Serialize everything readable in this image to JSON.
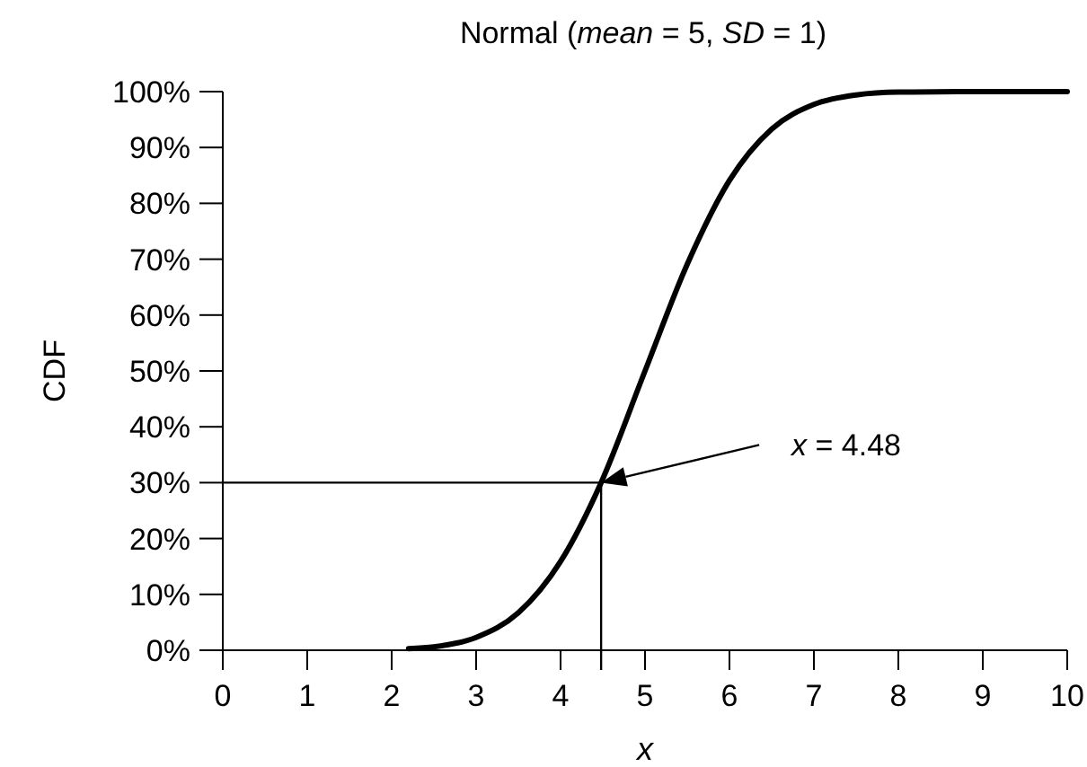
{
  "chart_data": {
    "type": "line",
    "title": "Normal (mean = 5, SD = 1)",
    "xlabel": "x",
    "ylabel": "CDF",
    "x": [
      2.2,
      2.5,
      3,
      3.5,
      4,
      4.48,
      5,
      5.5,
      6,
      6.5,
      7,
      7.5,
      8,
      9,
      10
    ],
    "series": [
      {
        "color": "#000000",
        "values": [
          0.3,
          0.6,
          2.3,
          6.7,
          15.9,
          30,
          50,
          69.1,
          84.1,
          93.3,
          97.7,
          99.4,
          99.9,
          100,
          100
        ]
      }
    ],
    "xlim": [
      0,
      10
    ],
    "xticks": [
      0,
      1,
      2,
      3,
      4,
      5,
      6,
      7,
      8,
      9,
      10
    ],
    "ylim": [
      0,
      100
    ],
    "yticks": [
      {
        "value": 0,
        "label": "0%"
      },
      {
        "value": 10,
        "label": "10%"
      },
      {
        "value": 20,
        "label": "20%"
      },
      {
        "value": 30,
        "label": "30%"
      },
      {
        "value": 40,
        "label": "40%"
      },
      {
        "value": 50,
        "label": "50%"
      },
      {
        "value": 60,
        "label": "60%"
      },
      {
        "value": 70,
        "label": "70%"
      },
      {
        "value": 80,
        "label": "80%"
      },
      {
        "value": 90,
        "label": "90%"
      },
      {
        "value": 100,
        "label": "100%"
      }
    ],
    "ref_lines": [
      {
        "axis": "y",
        "value": 30
      },
      {
        "axis": "x",
        "value": 4.48
      }
    ],
    "annotations": [
      "x = 4.48"
    ],
    "grid": false,
    "marker": "none",
    "line_style": "solid"
  }
}
